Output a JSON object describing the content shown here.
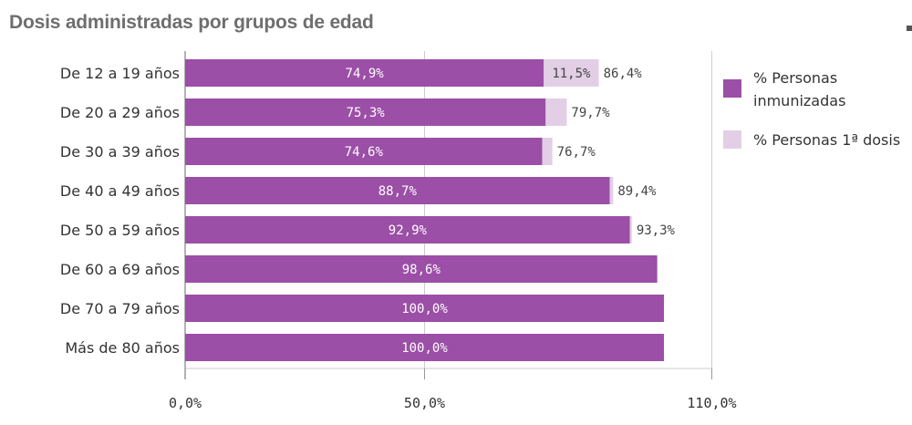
{
  "title": "Dosis administradas por grupos de edad",
  "chart_data": {
    "type": "bar",
    "orientation": "horizontal",
    "stacked": true,
    "categories": [
      "De 12 a 19 años",
      "De 20 a 29 años",
      "De 30 a 39 años",
      "De 40 a 49 años",
      "De 50 a 59 años",
      "De 60 a 69 años",
      "De 70 a 79 años",
      "Más de 80 años"
    ],
    "series": [
      {
        "name": "% Personas inmunizadas",
        "color": "#9b4fa6",
        "values": [
          74.9,
          75.3,
          74.6,
          88.7,
          92.9,
          98.6,
          100.0,
          100.0
        ],
        "labels": [
          "74,9%",
          "75,3%",
          "74,6%",
          "88,7%",
          "92,9%",
          "98,6%",
          "100,0%",
          "100,0%"
        ]
      },
      {
        "name": "% Personas 1ª dosis",
        "color": "#e2cfe6",
        "values": [
          11.5,
          4.4,
          2.1,
          0.7,
          0.4,
          0,
          0,
          0
        ],
        "labels": [
          "11,5%",
          "",
          "",
          "",
          "",
          "",
          "",
          ""
        ]
      }
    ],
    "totals": [
      86.4,
      79.7,
      76.7,
      89.4,
      93.3,
      98.6,
      100.0,
      100.0
    ],
    "total_labels": [
      "86,4%",
      "79,7%",
      "76,7%",
      "89,4%",
      "93,3%",
      "",
      "",
      ""
    ],
    "xlim": [
      0,
      110
    ],
    "x_ticks": [
      0,
      50,
      110
    ],
    "x_tick_labels": [
      "0,0%",
      "50,0%",
      "110,0%"
    ],
    "legend_position": "right"
  }
}
